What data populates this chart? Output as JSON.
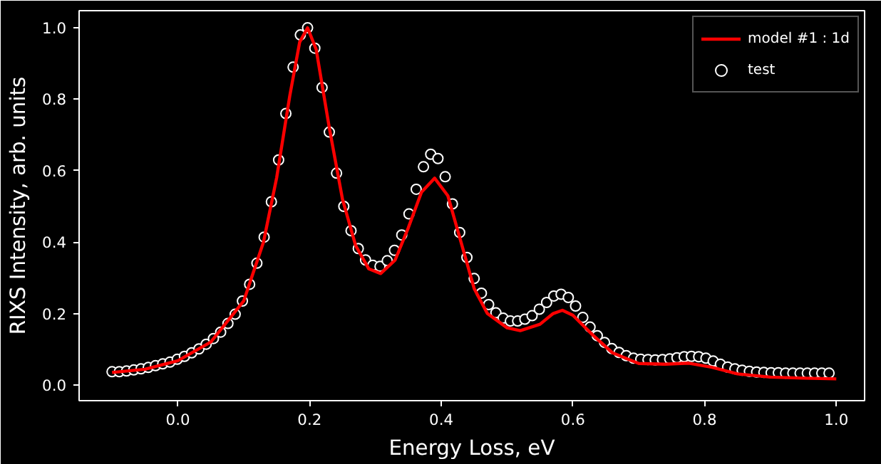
{
  "chart_data": {
    "type": "scatter",
    "xlabel": "Energy Loss, eV",
    "ylabel": "RIXS Intensity, arb. units",
    "xlim": [
      -0.15,
      1.043
    ],
    "ylim": [
      -0.044,
      1.048
    ],
    "xticks": [
      {
        "value": 0,
        "label": "0.0"
      },
      {
        "value": 0.2,
        "label": "0.2"
      },
      {
        "value": 0.4,
        "label": "0.4"
      },
      {
        "value": 0.6,
        "label": "0.6"
      },
      {
        "value": 0.8,
        "label": "0.8"
      },
      {
        "value": 1,
        "label": "1.0"
      }
    ],
    "yticks": [
      {
        "value": 0,
        "label": "0.0"
      },
      {
        "value": 0.2,
        "label": "0.2"
      },
      {
        "value": 0.4,
        "label": "0.4"
      },
      {
        "value": 0.6,
        "label": "0.6"
      },
      {
        "value": 0.8,
        "label": "0.8"
      },
      {
        "value": 1,
        "label": "1.0"
      }
    ],
    "legend": "top right",
    "grid": false,
    "series": [
      {
        "name": "model #1 : 1d",
        "type": "line",
        "color": "#ff0000",
        "line_style": "solid",
        "marker": "none",
        "x": [
          -0.1,
          -0.05,
          0.0,
          0.05,
          0.1,
          0.13,
          0.15,
          0.17,
          0.185,
          0.197,
          0.21,
          0.23,
          0.25,
          0.27,
          0.29,
          0.308,
          0.33,
          0.35,
          0.37,
          0.39,
          0.41,
          0.43,
          0.45,
          0.47,
          0.5,
          0.52,
          0.55,
          0.57,
          0.584,
          0.6,
          0.63,
          0.66,
          0.7,
          0.74,
          0.776,
          0.81,
          0.85,
          0.9,
          0.95,
          1.0
        ],
        "values": [
          0.035,
          0.044,
          0.068,
          0.12,
          0.235,
          0.4,
          0.58,
          0.81,
          0.96,
          1.0,
          0.94,
          0.72,
          0.52,
          0.39,
          0.325,
          0.312,
          0.35,
          0.44,
          0.54,
          0.579,
          0.53,
          0.4,
          0.27,
          0.2,
          0.16,
          0.152,
          0.17,
          0.2,
          0.209,
          0.195,
          0.14,
          0.09,
          0.06,
          0.058,
          0.061,
          0.05,
          0.031,
          0.022,
          0.019,
          0.017
        ]
      },
      {
        "name": "test",
        "color": "#ffffff",
        "marker": "circle",
        "x": [
          -0.1,
          -0.089,
          -0.078,
          -0.067,
          -0.056,
          -0.045,
          -0.034,
          -0.023,
          -0.012,
          -0.001,
          0.01,
          0.021,
          0.032,
          0.043,
          0.054,
          0.065,
          0.076,
          0.087,
          0.098,
          0.109,
          0.12,
          0.131,
          0.142,
          0.153,
          0.164,
          0.175,
          0.186,
          0.197,
          0.208,
          0.219,
          0.23,
          0.241,
          0.252,
          0.263,
          0.274,
          0.285,
          0.296,
          0.307,
          0.318,
          0.329,
          0.34,
          0.351,
          0.362,
          0.373,
          0.384,
          0.395,
          0.406,
          0.417,
          0.428,
          0.439,
          0.45,
          0.461,
          0.472,
          0.483,
          0.494,
          0.505,
          0.516,
          0.527,
          0.538,
          0.549,
          0.56,
          0.571,
          0.582,
          0.593,
          0.604,
          0.615,
          0.626,
          0.637,
          0.648,
          0.659,
          0.67,
          0.681,
          0.692,
          0.703,
          0.714,
          0.725,
          0.736,
          0.747,
          0.758,
          0.769,
          0.78,
          0.791,
          0.802,
          0.813,
          0.824,
          0.835,
          0.846,
          0.857,
          0.868,
          0.879,
          0.89,
          0.901,
          0.912,
          0.923,
          0.934,
          0.945,
          0.956,
          0.967,
          0.978,
          0.989
        ],
        "values": [
          0.037,
          0.037,
          0.039,
          0.042,
          0.045,
          0.049,
          0.054,
          0.059,
          0.064,
          0.072,
          0.08,
          0.09,
          0.101,
          0.114,
          0.13,
          0.148,
          0.172,
          0.198,
          0.235,
          0.282,
          0.341,
          0.414,
          0.513,
          0.63,
          0.76,
          0.89,
          0.98,
          1.0,
          0.943,
          0.833,
          0.708,
          0.593,
          0.5,
          0.432,
          0.382,
          0.35,
          0.335,
          0.332,
          0.348,
          0.377,
          0.42,
          0.479,
          0.548,
          0.611,
          0.646,
          0.634,
          0.583,
          0.507,
          0.427,
          0.357,
          0.298,
          0.257,
          0.225,
          0.202,
          0.187,
          0.179,
          0.179,
          0.184,
          0.194,
          0.212,
          0.231,
          0.249,
          0.254,
          0.245,
          0.221,
          0.189,
          0.162,
          0.138,
          0.119,
          0.102,
          0.091,
          0.082,
          0.075,
          0.072,
          0.071,
          0.07,
          0.071,
          0.073,
          0.076,
          0.079,
          0.08,
          0.079,
          0.075,
          0.067,
          0.058,
          0.05,
          0.045,
          0.041,
          0.038,
          0.036,
          0.035,
          0.034,
          0.034,
          0.033,
          0.033,
          0.033,
          0.033,
          0.033,
          0.033,
          0.033
        ]
      }
    ]
  }
}
